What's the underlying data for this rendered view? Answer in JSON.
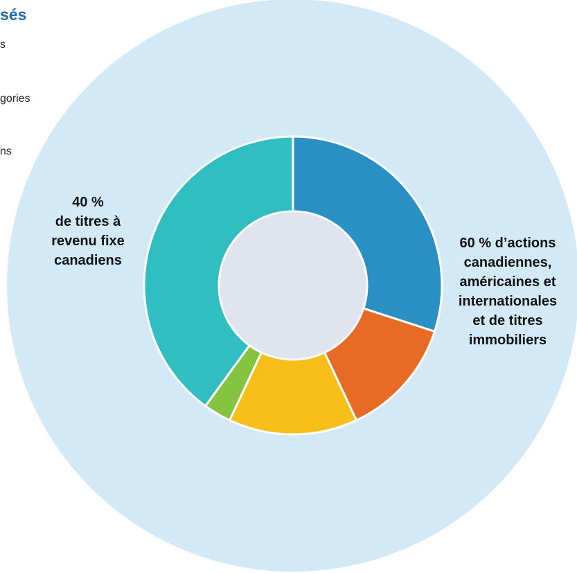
{
  "page": {
    "heading": "sés",
    "side_lines": [
      "s",
      "gories",
      "ns"
    ]
  },
  "colors": {
    "outer_ring": "#D3EAF6",
    "center_hole": "#DFE4EE",
    "separator": "#FFFFFF"
  },
  "chart_data": {
    "type": "pie",
    "title": "",
    "slices": [
      {
        "label": "",
        "value": 30,
        "color": "#2A8FC3"
      },
      {
        "label": "",
        "value": 13,
        "color": "#E86B25"
      },
      {
        "label": "",
        "value": 14,
        "color": "#F8BE1A"
      },
      {
        "label": "",
        "value": 3,
        "color": "#84C441"
      },
      {
        "label": "",
        "value": 40,
        "color": "#30BEC1"
      }
    ],
    "annotations": [
      {
        "id": "equities",
        "lines": [
          "60 % d’actions",
          "canadiennes,",
          "américaines et",
          "internationales",
          "et de titres",
          "immobiliers"
        ]
      },
      {
        "id": "fixed-income",
        "lines": [
          "40 %",
          "de titres à",
          "revenu fixe",
          "canadiens"
        ]
      }
    ]
  }
}
